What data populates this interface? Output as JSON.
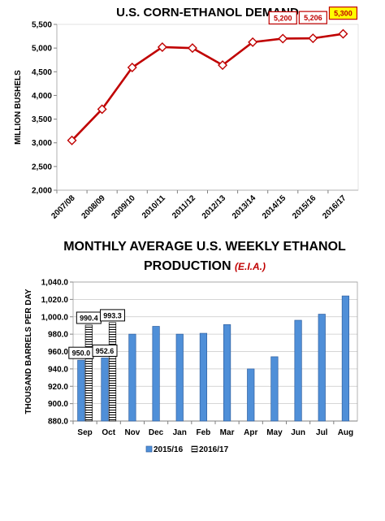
{
  "chart_data": [
    {
      "type": "line",
      "title": "U.S. CORN-ETHANOL DEMAND",
      "ylabel": "MILLION BUSHELS",
      "xlabel": "",
      "ylim": [
        2000,
        5500
      ],
      "yticks": [
        "2,000",
        "2,500",
        "3,000",
        "3,500",
        "4,000",
        "4,500",
        "5,000",
        "5,500"
      ],
      "grid": false,
      "categories": [
        "2007/08",
        "2008/09",
        "2009/10",
        "2010/11",
        "2011/12",
        "2012/13",
        "2013/14",
        "2014/15",
        "2015/16",
        "2016/17"
      ],
      "series": [
        {
          "values": [
            3050,
            3710,
            4590,
            5020,
            5000,
            4640,
            5125,
            5200,
            5206,
            5300
          ],
          "color": "#c00000"
        }
      ],
      "data_labels": [
        {
          "index": 7,
          "text": "5,200",
          "fill": "#ffffff",
          "border": "#c00000",
          "color": "#c00000"
        },
        {
          "index": 8,
          "text": "5,206",
          "fill": "#ffffff",
          "border": "#c00000",
          "color": "#c00000"
        },
        {
          "index": 9,
          "text": "5,300",
          "fill": "#ffff00",
          "border": "#c00000",
          "color": "#c00000"
        }
      ]
    },
    {
      "type": "bar",
      "title": "MONTHLY AVERAGE U.S. WEEKLY ETHANOL",
      "title_line2": "PRODUCTION",
      "title_note": "(E.I.A.)",
      "title_note_color": "#c00000",
      "ylabel": "THOUSAND BARRELS PER DAY",
      "xlabel": "",
      "ylim": [
        880,
        1040
      ],
      "yticks": [
        "880.0",
        "900.0",
        "920.0",
        "940.0",
        "960.0",
        "980.0",
        "1,000.0",
        "1,020.0",
        "1,040.0"
      ],
      "grid": true,
      "legend": "bottom",
      "categories": [
        "Sep",
        "Oct",
        "Nov",
        "Dec",
        "Jan",
        "Feb",
        "Mar",
        "Apr",
        "May",
        "Jun",
        "Jul",
        "Aug"
      ],
      "series": [
        {
          "name": "2015/16",
          "values": [
            950.0,
            952.6,
            980,
            989,
            980,
            981,
            991,
            940,
            954,
            996,
            1003,
            1024
          ],
          "color": "#4f8fd8",
          "pattern": "solid"
        },
        {
          "name": "2016/17",
          "values": [
            990.4,
            993.3,
            null,
            null,
            null,
            null,
            null,
            null,
            null,
            null,
            null,
            null
          ],
          "color": "#ffffff",
          "pattern": "striped"
        }
      ],
      "data_labels": [
        {
          "series": 0,
          "index": 0,
          "text": "950.0"
        },
        {
          "series": 0,
          "index": 1,
          "text": "952.6"
        },
        {
          "series": 1,
          "index": 0,
          "text": "990.4"
        },
        {
          "series": 1,
          "index": 1,
          "text": "993.3"
        }
      ]
    }
  ]
}
